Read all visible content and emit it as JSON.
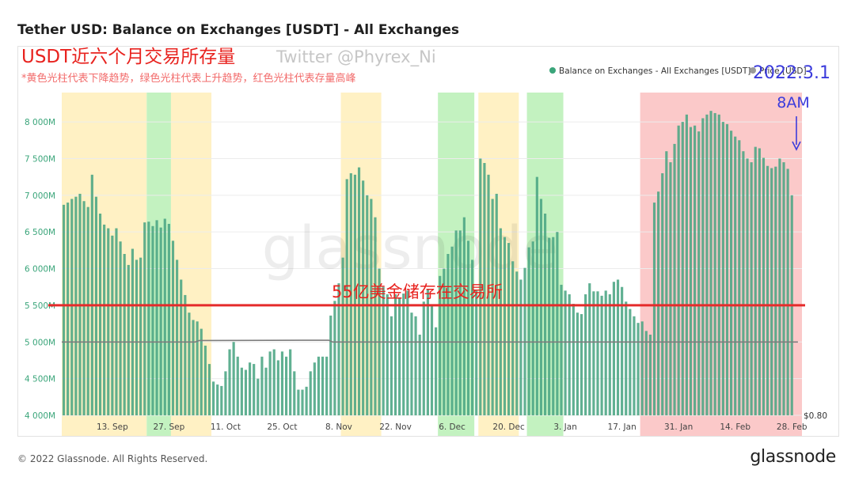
{
  "page": {
    "title": "Tether USD: Balance on Exchanges [USDT] - All Exchanges",
    "copyright": "© 2022 Glassnode. All Rights Reserved.",
    "brand": "glassnode",
    "watermark": "glassnode"
  },
  "annotations": {
    "headline": "USDT近六个月交易所存量",
    "twitter": "Twitter @Phyrex_Ni",
    "note": "*黄色光柱代表下降趋势，绿色光柱代表上升趋势，红色光柱代表存量高峰",
    "date": "2022.3.1",
    "time": "8AM",
    "line_label": "55亿美金储存在交易所",
    "line_value": 5500
  },
  "chart_data": {
    "type": "bar",
    "title": "Tether USD: Balance on Exchanges [USDT] - All Exchanges",
    "legend": [
      {
        "name": "Balance on Exchanges - All Exchanges [USDT]",
        "color": "#3aa57a"
      },
      {
        "name": "Price [USD]",
        "color": "#9a9a9a"
      }
    ],
    "legend_position": "top-right",
    "ylim": [
      4000,
      8400
    ],
    "y_unit": "M",
    "y_ticks": [
      "4 000M",
      "4 500M",
      "5 000M",
      "5 500M",
      "6 000M",
      "6 500M",
      "7 000M",
      "7 500M",
      "8 000M"
    ],
    "y_tick_values": [
      4000,
      4500,
      5000,
      5500,
      6000,
      6500,
      7000,
      7500,
      8000
    ],
    "right_axis_label": "$0.80",
    "x_ticks": [
      {
        "label": "13. Sep",
        "index": 12
      },
      {
        "label": "27. Sep",
        "index": 26
      },
      {
        "label": "11. Oct",
        "index": 40
      },
      {
        "label": "25. Oct",
        "index": 54
      },
      {
        "label": "8. Nov",
        "index": 68
      },
      {
        "label": "22. Nov",
        "index": 82
      },
      {
        "label": "6. Dec",
        "index": 96
      },
      {
        "label": "20. Dec",
        "index": 110
      },
      {
        "label": "3. Jan",
        "index": 124
      },
      {
        "label": "17. Jan",
        "index": 138
      },
      {
        "label": "31. Jan",
        "index": 152
      },
      {
        "label": "14. Feb",
        "index": 166
      },
      {
        "label": "28. Feb",
        "index": 180
      }
    ],
    "price_line": [
      {
        "index": 0,
        "value": 5000
      },
      {
        "index": 33,
        "value": 5000
      },
      {
        "index": 34,
        "value": 5020
      },
      {
        "index": 66,
        "value": 5025
      },
      {
        "index": 67,
        "value": 5000
      },
      {
        "index": 182,
        "value": 5000
      }
    ],
    "bands": [
      {
        "type": "decline",
        "start": 0,
        "end": 21,
        "color": "#fff1c4"
      },
      {
        "type": "rise",
        "start": 21,
        "end": 27,
        "color": "#c3f2c0"
      },
      {
        "type": "decline",
        "start": 27,
        "end": 37,
        "color": "#fff1c4"
      },
      {
        "type": "decline",
        "start": 69,
        "end": 79,
        "color": "#fff1c4"
      },
      {
        "type": "rise",
        "start": 93,
        "end": 102,
        "color": "#c3f2c0"
      },
      {
        "type": "decline",
        "start": 103,
        "end": 113,
        "color": "#fff1c4"
      },
      {
        "type": "rise",
        "start": 115,
        "end": 124,
        "color": "#c3f2c0"
      },
      {
        "type": "peak",
        "start": 143,
        "end": 183,
        "color": "#fbc9c9"
      }
    ],
    "x_start_index": 0,
    "x_end_index": 182,
    "values": [
      6870,
      6900,
      6950,
      6980,
      7020,
      6920,
      6840,
      7280,
      6980,
      6750,
      6600,
      6550,
      6450,
      6550,
      6370,
      6200,
      6050,
      6270,
      6120,
      6150,
      6630,
      6640,
      6580,
      6660,
      6560,
      6680,
      6610,
      6380,
      6120,
      5850,
      5640,
      5400,
      5300,
      5280,
      5180,
      4950,
      4700,
      4460,
      4420,
      4400,
      4600,
      4900,
      5000,
      4800,
      4650,
      4620,
      4720,
      4700,
      4500,
      4800,
      4650,
      4870,
      4900,
      4750,
      4870,
      4800,
      4900,
      4600,
      4350,
      4350,
      4390,
      4600,
      4720,
      4800,
      4800,
      4800,
      5360,
      5560,
      5800,
      6150,
      7220,
      7300,
      7280,
      7380,
      7200,
      7000,
      6950,
      6700,
      6000,
      5750,
      5650,
      5350,
      5650,
      5600,
      5660,
      5700,
      5400,
      5350,
      5100,
      5550,
      5720,
      5500,
      5200,
      5900,
      6000,
      6200,
      6300,
      6520,
      6520,
      6700,
      6380,
      6120,
      5700,
      7500,
      7440,
      7280,
      6950,
      7020,
      6550,
      6430,
      6350,
      6100,
      5960,
      5850,
      6010,
      6290,
      6370,
      7250,
      6950,
      6750,
      6420,
      6430,
      6500,
      5780,
      5700,
      5650,
      5520,
      5400,
      5380,
      5650,
      5800,
      5690,
      5690,
      5630,
      5700,
      5650,
      5820,
      5850,
      5750,
      5550,
      5450,
      5350,
      5260,
      5280,
      5150,
      5100,
      6900,
      7050,
      7300,
      7600,
      7450,
      7700,
      7950,
      8000,
      8100,
      7930,
      7950,
      7870,
      8050,
      8100,
      8150,
      8120,
      8100,
      8000,
      7970,
      7880,
      7800,
      7750,
      7600,
      7500,
      7450,
      7660,
      7640,
      7510,
      7400,
      7370,
      7390,
      7500,
      7450,
      7360,
      7000
    ]
  }
}
